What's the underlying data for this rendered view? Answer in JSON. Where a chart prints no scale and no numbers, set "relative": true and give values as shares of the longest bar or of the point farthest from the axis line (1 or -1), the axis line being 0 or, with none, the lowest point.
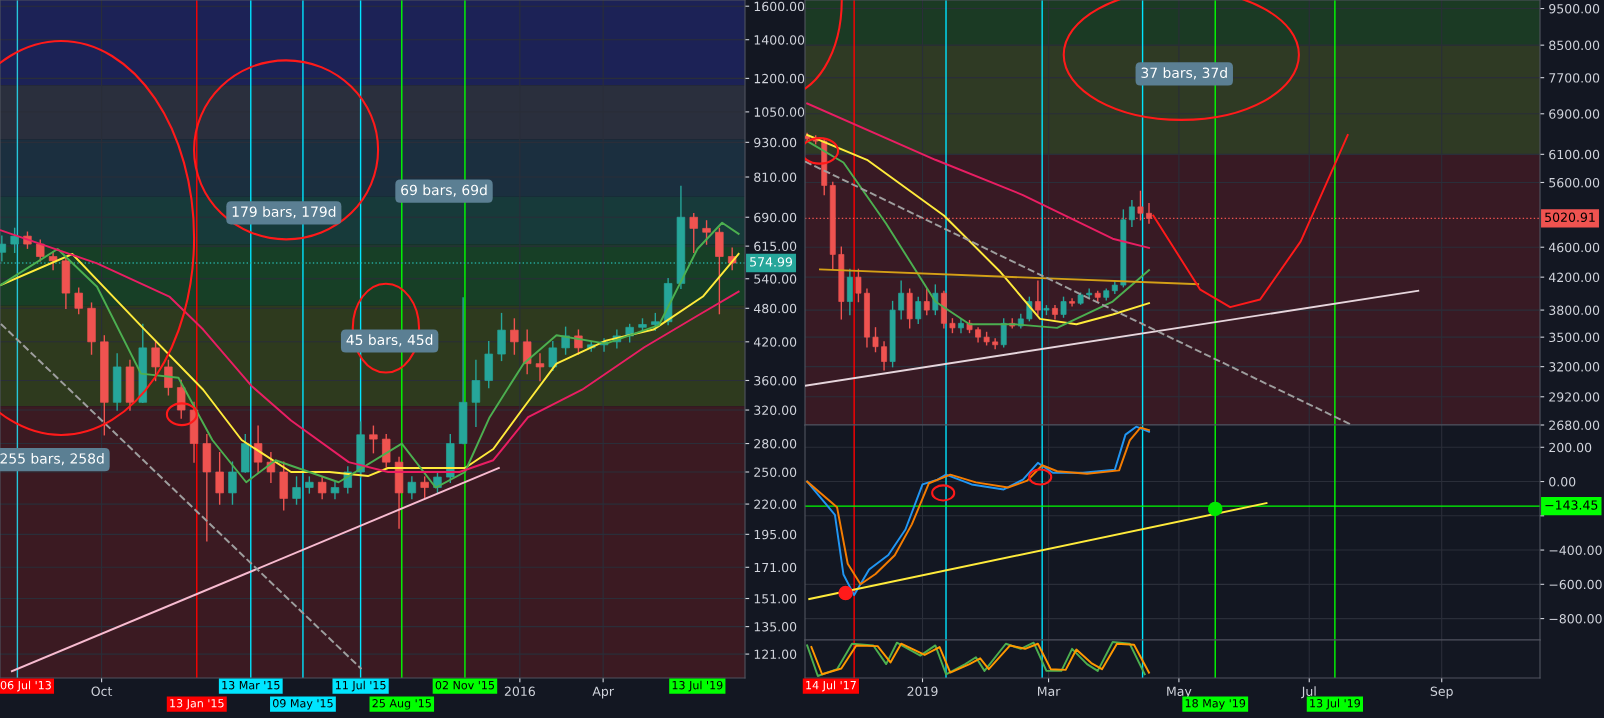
{
  "chart_data": [
    {
      "type": "candlestick",
      "log": true,
      "grid": true,
      "xlim": [
        "2014-06-12",
        "2016-09-03"
      ],
      "ylim": [
        110,
        1640
      ],
      "xticks": [
        {
          "value": "2014-10-01",
          "label": "Oct"
        },
        {
          "value": "2016-01-01",
          "label": "2016"
        },
        {
          "value": "2016-04-01",
          "label": "Apr"
        }
      ],
      "yticks": [
        {
          "value": 121,
          "label": "121.00"
        },
        {
          "value": 135,
          "label": "135.00"
        },
        {
          "value": 151,
          "label": "151.00"
        },
        {
          "value": 171,
          "label": "171.00"
        },
        {
          "value": 195,
          "label": "195.00"
        },
        {
          "value": 220,
          "label": "220.00"
        },
        {
          "value": 250,
          "label": "250.00"
        },
        {
          "value": 280,
          "label": "280.00"
        },
        {
          "value": 320,
          "label": "320.00"
        },
        {
          "value": 360,
          "label": "360.00"
        },
        {
          "value": 420,
          "label": "420.00"
        },
        {
          "value": 480,
          "label": "480.00"
        },
        {
          "value": 540,
          "label": "540.00"
        },
        {
          "value": 615,
          "label": "615.00"
        },
        {
          "value": 690,
          "label": "690.00"
        },
        {
          "value": 810,
          "label": "810.00"
        },
        {
          "value": 930,
          "label": "930.00"
        },
        {
          "value": 1050,
          "label": "1050.00"
        },
        {
          "value": 1200,
          "label": "1200.00"
        },
        {
          "value": 1400,
          "label": "1400.00"
        },
        {
          "value": 1600,
          "label": "1600.00"
        }
      ],
      "x": [
        "2014-06-14",
        "2014-06-28",
        "2014-07-12",
        "2014-07-26",
        "2014-08-09",
        "2014-08-23",
        "2014-09-06",
        "2014-09-20",
        "2014-10-04",
        "2014-10-18",
        "2014-11-01",
        "2014-11-15",
        "2014-11-29",
        "2014-12-13",
        "2014-12-27",
        "2015-01-10",
        "2015-01-24",
        "2015-02-07",
        "2015-02-21",
        "2015-03-07",
        "2015-03-21",
        "2015-04-04",
        "2015-04-18",
        "2015-05-02",
        "2015-05-16",
        "2015-05-30",
        "2015-06-13",
        "2015-06-27",
        "2015-07-11",
        "2015-07-25",
        "2015-08-08",
        "2015-08-22",
        "2015-09-05",
        "2015-09-19",
        "2015-10-03",
        "2015-10-17",
        "2015-10-31",
        "2015-11-14",
        "2015-11-28",
        "2015-12-12",
        "2015-12-26",
        "2016-01-09",
        "2016-01-23",
        "2016-02-06",
        "2016-02-20",
        "2016-03-05",
        "2016-03-19",
        "2016-04-02",
        "2016-04-16",
        "2016-04-30",
        "2016-05-14",
        "2016-05-28",
        "2016-06-11",
        "2016-06-25",
        "2016-07-09",
        "2016-07-23",
        "2016-08-06",
        "2016-08-20"
      ],
      "ohlc": [
        [
          600,
          640,
          580,
          620
        ],
        [
          620,
          660,
          600,
          640
        ],
        [
          640,
          650,
          610,
          620
        ],
        [
          620,
          630,
          580,
          590
        ],
        [
          590,
          600,
          560,
          580
        ],
        [
          580,
          590,
          480,
          510
        ],
        [
          510,
          520,
          470,
          480
        ],
        [
          480,
          490,
          400,
          420
        ],
        [
          420,
          430,
          290,
          330
        ],
        [
          330,
          400,
          320,
          380
        ],
        [
          380,
          390,
          320,
          330
        ],
        [
          330,
          450,
          330,
          410
        ],
        [
          410,
          420,
          360,
          380
        ],
        [
          380,
          390,
          340,
          350
        ],
        [
          350,
          360,
          310,
          320
        ],
        [
          320,
          330,
          260,
          280
        ],
        [
          280,
          290,
          190,
          250
        ],
        [
          250,
          270,
          220,
          230
        ],
        [
          230,
          260,
          220,
          250
        ],
        [
          250,
          290,
          250,
          280
        ],
        [
          280,
          300,
          250,
          260
        ],
        [
          260,
          270,
          240,
          250
        ],
        [
          250,
          260,
          215,
          225
        ],
        [
          225,
          245,
          220,
          235
        ],
        [
          235,
          245,
          230,
          240
        ],
        [
          240,
          245,
          225,
          230
        ],
        [
          230,
          240,
          225,
          235
        ],
        [
          235,
          255,
          230,
          250
        ],
        [
          250,
          305,
          245,
          290
        ],
        [
          290,
          300,
          270,
          285
        ],
        [
          285,
          290,
          255,
          260
        ],
        [
          260,
          265,
          200,
          230
        ],
        [
          230,
          245,
          225,
          240
        ],
        [
          240,
          245,
          225,
          235
        ],
        [
          235,
          250,
          230,
          245
        ],
        [
          245,
          290,
          240,
          280
        ],
        [
          280,
          500,
          280,
          330
        ],
        [
          330,
          390,
          300,
          360
        ],
        [
          360,
          420,
          350,
          400
        ],
        [
          400,
          470,
          390,
          440
        ],
        [
          440,
          460,
          400,
          420
        ],
        [
          420,
          440,
          370,
          385
        ],
        [
          385,
          400,
          360,
          380
        ],
        [
          380,
          420,
          375,
          410
        ],
        [
          410,
          445,
          400,
          430
        ],
        [
          430,
          440,
          400,
          410
        ],
        [
          410,
          420,
          405,
          415
        ],
        [
          415,
          425,
          405,
          420
        ],
        [
          420,
          440,
          410,
          430
        ],
        [
          430,
          450,
          420,
          445
        ],
        [
          445,
          460,
          440,
          450
        ],
        [
          450,
          470,
          440,
          455
        ],
        [
          455,
          540,
          450,
          530
        ],
        [
          530,
          780,
          520,
          690
        ],
        [
          690,
          700,
          600,
          660
        ],
        [
          660,
          680,
          620,
          650
        ],
        [
          650,
          660,
          470,
          590
        ],
        [
          590,
          610,
          560,
          574.99
        ]
      ],
      "colors": [
        "#26a69a",
        "#26a69a",
        "#ef5350",
        "#ef5350",
        "#ef5350",
        "#ef5350",
        "#ef5350",
        "#ef5350",
        "#ef5350",
        "#26a69a",
        "#ef5350",
        "#26a69a",
        "#ef5350",
        "#ef5350",
        "#ef5350",
        "#ef5350",
        "#ef5350",
        "#ef5350",
        "#26a69a",
        "#26a69a",
        "#ef5350",
        "#ef5350",
        "#ef5350",
        "#26a69a",
        "#26a69a",
        "#ef5350",
        "#26a69a",
        "#26a69a",
        "#26a69a",
        "#ef5350",
        "#ef5350",
        "#ef5350",
        "#26a69a",
        "#ef5350",
        "#26a69a",
        "#26a69a",
        "#26a69a",
        "#26a69a",
        "#26a69a",
        "#26a69a",
        "#ef5350",
        "#ef5350",
        "#ef5350",
        "#26a69a",
        "#26a69a",
        "#ef5350",
        "#26a69a",
        "#26a69a",
        "#26a69a",
        "#26a69a",
        "#26a69a",
        "#26a69a",
        "#26a69a",
        "#26a69a",
        "#ef5350",
        "#ef5350",
        "#ef5350",
        "#ef5350"
      ],
      "series": [
        {
          "type": "line",
          "color": "#ffeb3b",
          "x": [
            "2014-06-13",
            "2014-08-30",
            "2014-11-17",
            "2015-01-20",
            "2015-03-03",
            "2015-04-26",
            "2015-06-07",
            "2015-07-19",
            "2015-08-10",
            "2015-11-02",
            "2015-12-03",
            "2016-01-05",
            "2016-02-10",
            "2016-04-04",
            "2016-05-26",
            "2016-07-19",
            "2016-08-27"
          ],
          "values": [
            527,
            596,
            441,
            347,
            284,
            250,
            250,
            246,
            254,
            254,
            274,
            323,
            385,
            422,
            441,
            503,
            596
          ]
        },
        {
          "type": "line",
          "color": "#4caf50",
          "x": [
            "2014-06-13",
            "2014-08-14",
            "2014-09-26",
            "2014-11-13",
            "2014-12-24",
            "2015-01-30",
            "2015-03-08",
            "2015-04-09",
            "2015-06-17",
            "2015-08-25",
            "2015-10-01",
            "2015-11-02",
            "2015-11-29",
            "2016-01-05",
            "2016-02-10",
            "2016-04-04",
            "2016-06-01",
            "2016-07-13",
            "2016-08-09",
            "2016-08-27"
          ],
          "values": [
            527,
            608,
            523,
            370,
            364,
            284,
            240,
            262,
            240,
            280,
            235,
            250,
            311,
            385,
            431,
            417,
            449,
            608,
            675,
            646
          ]
        },
        {
          "type": "line",
          "color": "#e91e63",
          "x": [
            "2014-06-13",
            "2014-09-26",
            "2014-12-14",
            "2015-01-20",
            "2015-03-14",
            "2015-04-26",
            "2015-06-28",
            "2015-08-10",
            "2015-10-27",
            "2015-12-03",
            "2016-01-10",
            "2016-03-09",
            "2016-05-16",
            "2016-07-13",
            "2016-08-27"
          ],
          "values": [
            655,
            574,
            503,
            441,
            352,
            307,
            260,
            250,
            250,
            262,
            311,
            347,
            411,
            466,
            513
          ]
        },
        {
          "type": "line",
          "color": "#f8bbd0",
          "x": [
            "2014-06-25",
            "2015-12-09"
          ],
          "values": [
            113,
            254
          ]
        },
        {
          "type": "line",
          "color": "#9e9e9e",
          "line_style": "dashed",
          "x": [
            "2014-06-13",
            "2015-07-12"
          ],
          "values": [
            451,
            114
          ]
        }
      ],
      "bands": [
        {
          "axis": "y",
          "from": 1168,
          "to": 1640,
          "color": "#1c2256"
        },
        {
          "axis": "y",
          "from": 941,
          "to": 1168,
          "color": "#2a2f3d"
        },
        {
          "axis": "y",
          "from": 749,
          "to": 941,
          "color": "#1b2f3f"
        },
        {
          "axis": "y",
          "from": 619,
          "to": 749,
          "color": "#173a3a"
        },
        {
          "axis": "y",
          "from": 485,
          "to": 619,
          "color": "#173f26"
        },
        {
          "axis": "y",
          "from": 325,
          "to": 485,
          "color": "#2e3a1e"
        },
        {
          "axis": "y",
          "from": 110,
          "to": 325,
          "color": "#3b1a22"
        }
      ],
      "ref_lines": [
        {
          "axis": "x",
          "value": "2014-07-01",
          "color": "#26c6da"
        },
        {
          "axis": "x",
          "value": "2015-01-13",
          "label": "13 Jan '15",
          "color": "#ff0000"
        },
        {
          "axis": "x",
          "value": "2015-03-13",
          "label": "13 Mar '15",
          "color": "#00e5ff"
        },
        {
          "axis": "x",
          "value": "2015-05-09",
          "label": "09 May '15",
          "color": "#00e5ff"
        },
        {
          "axis": "x",
          "value": "2015-07-11",
          "label": "11 Jul '15",
          "color": "#00e5ff"
        },
        {
          "axis": "x",
          "value": "2015-08-25",
          "label": "25 Aug '15",
          "color": "#00ff00"
        },
        {
          "axis": "x",
          "value": "2015-11-02",
          "label": "02 Nov '15",
          "color": "#00ff00"
        },
        {
          "axis": "y",
          "value": 574.99,
          "label": "574.99",
          "color": "#26a69a",
          "line_style": "dotted"
        }
      ],
      "annotations": [
        "255 bars, 258d",
        "179 bars, 179d",
        "69 bars, 69d",
        "45 bars, 45d",
        "06 Jul '13",
        "13 Jul '19"
      ]
    },
    {
      "type": "candlestick",
      "log": true,
      "grid": true,
      "tick_labels": "y",
      "xlim": [
        "2018-11-07",
        "2019-10-17"
      ],
      "ylim": [
        2680,
        9750
      ],
      "xticks": [
        {
          "value": "2019-01-01",
          "label": null
        },
        {
          "value": "2019-03-01",
          "label": null
        },
        {
          "value": "2019-05-01",
          "label": null
        },
        {
          "value": "2019-07-01",
          "label": null
        },
        {
          "value": "2019-09-01",
          "label": null
        }
      ],
      "yticks": [
        {
          "value": 2680,
          "label": "2680.00"
        },
        {
          "value": 2920,
          "label": "2920.00"
        },
        {
          "value": 3200,
          "label": "3200.00"
        },
        {
          "value": 3500,
          "label": "3500.00"
        },
        {
          "value": 3800,
          "label": "3800.00"
        },
        {
          "value": 4200,
          "label": "4200.00"
        },
        {
          "value": 4600,
          "label": "4600.00"
        },
        {
          "value": 5600,
          "label": "5600.00"
        },
        {
          "value": 6100,
          "label": "6100.00"
        },
        {
          "value": 6900,
          "label": "6900.00"
        },
        {
          "value": 7700,
          "label": "7700.00"
        },
        {
          "value": 8500,
          "label": "8500.00"
        },
        {
          "value": 9500,
          "label": "9500.00"
        }
      ],
      "x": [
        "2018-11-08",
        "2018-11-12",
        "2018-11-16",
        "2018-11-20",
        "2018-11-24",
        "2018-11-28",
        "2018-12-02",
        "2018-12-06",
        "2018-12-10",
        "2018-12-14",
        "2018-12-18",
        "2018-12-22",
        "2018-12-26",
        "2018-12-30",
        "2019-01-03",
        "2019-01-07",
        "2019-01-11",
        "2019-01-15",
        "2019-01-19",
        "2019-01-23",
        "2019-01-27",
        "2019-01-31",
        "2019-02-04",
        "2019-02-08",
        "2019-02-12",
        "2019-02-16",
        "2019-02-20",
        "2019-02-24",
        "2019-02-28",
        "2019-03-04",
        "2019-03-08",
        "2019-03-12",
        "2019-03-16",
        "2019-03-20",
        "2019-03-24",
        "2019-03-28",
        "2019-04-01",
        "2019-04-05",
        "2019-04-09",
        "2019-04-13",
        "2019-04-17"
      ],
      "ohlc": [
        [
          6450,
          6500,
          6350,
          6400
        ],
        [
          6400,
          6450,
          6300,
          6350
        ],
        [
          6350,
          6380,
          5400,
          5550
        ],
        [
          5550,
          5600,
          4300,
          4500
        ],
        [
          4500,
          4600,
          3700,
          3900
        ],
        [
          3900,
          4300,
          3750,
          4200
        ],
        [
          4200,
          4300,
          3900,
          4000
        ],
        [
          4000,
          4050,
          3400,
          3500
        ],
        [
          3500,
          3600,
          3350,
          3400
        ],
        [
          3400,
          3450,
          3170,
          3250
        ],
        [
          3250,
          3900,
          3200,
          3800
        ],
        [
          3800,
          4150,
          3700,
          4000
        ],
        [
          4000,
          4050,
          3600,
          3700
        ],
        [
          3700,
          3950,
          3650,
          3900
        ],
        [
          3900,
          4050,
          3750,
          3800
        ],
        [
          3800,
          4100,
          3750,
          4000
        ],
        [
          4000,
          4020,
          3600,
          3650
        ],
        [
          3650,
          3700,
          3550,
          3600
        ],
        [
          3600,
          3700,
          3550,
          3650
        ],
        [
          3650,
          3680,
          3550,
          3580
        ],
        [
          3580,
          3600,
          3450,
          3500
        ],
        [
          3500,
          3550,
          3420,
          3450
        ],
        [
          3450,
          3480,
          3380,
          3420
        ],
        [
          3420,
          3700,
          3400,
          3650
        ],
        [
          3650,
          3700,
          3600,
          3620
        ],
        [
          3620,
          3750,
          3600,
          3700
        ],
        [
          3700,
          3950,
          3680,
          3900
        ],
        [
          3900,
          4150,
          3750,
          3800
        ],
        [
          3800,
          3850,
          3750,
          3820
        ],
        [
          3820,
          3850,
          3700,
          3750
        ],
        [
          3750,
          3950,
          3720,
          3900
        ],
        [
          3900,
          3930,
          3850,
          3880
        ],
        [
          3880,
          4000,
          3870,
          3980
        ],
        [
          3980,
          4050,
          3950,
          4000
        ],
        [
          4000,
          4020,
          3900,
          3950
        ],
        [
          3950,
          4050,
          3920,
          4030
        ],
        [
          4030,
          4150,
          4000,
          4100
        ],
        [
          4100,
          5150,
          4080,
          5000
        ],
        [
          5000,
          5300,
          4900,
          5200
        ],
        [
          5200,
          5450,
          5000,
          5100
        ],
        [
          5100,
          5250,
          4950,
          5020.91
        ]
      ],
      "colors": [
        "#ef5350",
        "#ef5350",
        "#ef5350",
        "#ef5350",
        "#ef5350",
        "#26a69a",
        "#ef5350",
        "#ef5350",
        "#ef5350",
        "#ef5350",
        "#26a69a",
        "#26a69a",
        "#ef5350",
        "#26a69a",
        "#ef5350",
        "#26a69a",
        "#ef5350",
        "#ef5350",
        "#26a69a",
        "#ef5350",
        "#ef5350",
        "#ef5350",
        "#ef5350",
        "#26a69a",
        "#ef5350",
        "#26a69a",
        "#26a69a",
        "#ef5350",
        "#26a69a",
        "#ef5350",
        "#26a69a",
        "#ef5350",
        "#26a69a",
        "#26a69a",
        "#ef5350",
        "#26a69a",
        "#26a69a",
        "#26a69a",
        "#26a69a",
        "#ef5350",
        "#ef5350"
      ],
      "series": [
        {
          "type": "line",
          "color": "#e91e63",
          "x": [
            "2018-11-08",
            "2019-01-07",
            "2019-02-17",
            "2019-03-31",
            "2019-04-17"
          ],
          "values": [
            7120,
            6000,
            5390,
            4720,
            4590
          ]
        },
        {
          "type": "line",
          "color": "#ffeb3b",
          "x": [
            "2018-11-08",
            "2018-12-06",
            "2019-01-11",
            "2019-02-06",
            "2019-02-25",
            "2019-03-14",
            "2019-03-31",
            "2019-04-17"
          ],
          "values": [
            6470,
            6000,
            5065,
            4280,
            3700,
            3640,
            3750,
            3880
          ]
        },
        {
          "type": "line",
          "color": "#4caf50",
          "x": [
            "2018-11-08",
            "2018-11-25",
            "2018-12-15",
            "2019-01-07",
            "2019-01-23",
            "2019-02-13",
            "2019-03-05",
            "2019-03-31",
            "2019-04-17"
          ],
          "values": [
            6350,
            5950,
            4940,
            3900,
            3640,
            3640,
            3600,
            3900,
            4290
          ]
        },
        {
          "type": "line",
          "color": "#e6d5dc",
          "x": [
            "2018-11-07",
            "2019-08-21"
          ],
          "values": [
            3020,
            4030
          ]
        },
        {
          "type": "line",
          "color": "#d4a017",
          "x": [
            "2018-11-14",
            "2019-05-10"
          ],
          "values": [
            4300,
            4110
          ]
        },
        {
          "type": "line",
          "color": "#9e9e9e",
          "line_style": "dashed",
          "x": [
            "2018-11-07",
            "2019-07-21"
          ],
          "values": [
            5970,
            2680
          ]
        },
        {
          "type": "line",
          "color": "#ff1a1a",
          "x": [
            "2019-04-19",
            "2019-05-11",
            "2019-05-25",
            "2019-06-08",
            "2019-06-27",
            "2019-07-11",
            "2019-07-19"
          ],
          "values": [
            5065,
            4043,
            3834,
            3924,
            4682,
            5750,
            6468
          ]
        }
      ],
      "bands": [
        {
          "axis": "y",
          "from": 8500,
          "to": 9750,
          "color": "#1b3a24"
        },
        {
          "axis": "y",
          "from": 6100,
          "to": 8500,
          "color": "#2f3a24"
        },
        {
          "axis": "y",
          "from": 2680,
          "to": 6100,
          "color": "#381a24"
        }
      ],
      "ref_lines": [
        {
          "axis": "x",
          "value": "2018-11-30",
          "color": "#ff0000"
        },
        {
          "axis": "x",
          "value": "2019-01-12",
          "color": "#00e5ff"
        },
        {
          "axis": "x",
          "value": "2019-02-26",
          "color": "#00e5ff"
        },
        {
          "axis": "x",
          "value": "2019-04-14",
          "color": "#00e5ff"
        },
        {
          "axis": "x",
          "value": "2019-05-18",
          "color": "#00ff00"
        },
        {
          "axis": "x",
          "value": "2019-07-13",
          "color": "#00ff00"
        },
        {
          "axis": "y",
          "value": 5020.91,
          "label": "5020.91",
          "color": "#ef5350",
          "line_style": "dotted"
        }
      ],
      "annotations": [
        "37 bars, 37d"
      ]
    },
    {
      "type": "line",
      "grid": true,
      "tick_labels": "y",
      "xlim": [
        "2018-11-07",
        "2019-10-17"
      ],
      "ylim": [
        -925,
        330
      ],
      "xticks": [
        {
          "value": "2019-01-01",
          "label": null
        },
        {
          "value": "2019-03-01",
          "label": null
        },
        {
          "value": "2019-05-01",
          "label": null
        },
        {
          "value": "2019-07-01",
          "label": null
        },
        {
          "value": "2019-09-01",
          "label": null
        }
      ],
      "yticks": [
        {
          "value": -800,
          "label": "−800.00"
        },
        {
          "value": -600,
          "label": "−600.00"
        },
        {
          "value": -400,
          "label": "−400.00"
        },
        {
          "value": -200,
          "label": null
        },
        {
          "value": 0,
          "label": "0.00"
        },
        {
          "value": 200,
          "label": "200.00"
        }
      ],
      "series": [
        {
          "type": "line",
          "color": "#2196f3",
          "x": [
            "2018-11-08",
            "2018-11-21",
            "2018-11-25",
            "2018-11-30",
            "2018-12-07",
            "2018-12-16",
            "2018-12-24",
            "2019-01-01",
            "2019-01-08",
            "2019-01-12",
            "2019-01-24",
            "2019-02-08",
            "2019-02-17",
            "2019-02-24",
            "2019-03-03",
            "2019-03-17",
            "2019-04-01",
            "2019-04-06",
            "2019-04-11",
            "2019-04-17"
          ],
          "values": [
            0,
            -194,
            -543,
            -663,
            -514,
            -429,
            -280,
            -17,
            11,
            40,
            -17,
            -46,
            11,
            109,
            51,
            51,
            69,
            274,
            320,
            290
          ]
        },
        {
          "type": "line",
          "color": "#f57c00",
          "x": [
            "2018-11-08",
            "2018-11-22",
            "2018-11-27",
            "2018-12-03",
            "2018-12-10",
            "2018-12-19",
            "2018-12-27",
            "2019-01-04",
            "2019-01-10",
            "2019-01-14",
            "2019-01-26",
            "2019-02-10",
            "2019-02-19",
            "2019-02-26",
            "2019-03-05",
            "2019-03-19",
            "2019-04-03",
            "2019-04-08",
            "2019-04-13",
            "2019-04-17"
          ],
          "values": [
            0,
            -150,
            -480,
            -600,
            -540,
            -430,
            -250,
            -10,
            20,
            40,
            -5,
            -35,
            5,
            95,
            60,
            45,
            65,
            240,
            315,
            300
          ]
        },
        {
          "type": "line",
          "color": "#ffeb3b",
          "x": [
            "2018-11-09",
            "2019-06-11"
          ],
          "values": [
            -686,
            -126
          ]
        },
        {
          "type": "scatter",
          "marker": "circle",
          "color": "#ff1a1a",
          "x": [
            "2018-11-26"
          ],
          "values": [
            -651
          ]
        },
        {
          "type": "scatter",
          "marker": "circle",
          "color": "#00e600",
          "x": [
            "2019-05-18"
          ],
          "values": [
            -160
          ]
        }
      ],
      "ref_lines": [
        {
          "axis": "x",
          "value": "2018-11-30",
          "color": "#ff0000"
        },
        {
          "axis": "x",
          "value": "2019-01-12",
          "color": "#00e5ff"
        },
        {
          "axis": "x",
          "value": "2019-02-26",
          "color": "#00e5ff"
        },
        {
          "axis": "x",
          "value": "2019-04-14",
          "color": "#00e5ff"
        },
        {
          "axis": "x",
          "value": "2019-05-18",
          "color": "#00ff00"
        },
        {
          "axis": "x",
          "value": "2019-07-13",
          "color": "#00ff00"
        },
        {
          "axis": "y",
          "value": -143.45,
          "label": "−143.45",
          "color": "#00ff00",
          "line_style": "solid"
        }
      ]
    },
    {
      "type": "line",
      "relative": true,
      "grid": "x",
      "tick_labels": "x",
      "xlim": [
        "2018-11-07",
        "2019-10-17"
      ],
      "xticks": [
        {
          "value": "2019-01-01",
          "label": "2019"
        },
        {
          "value": "2019-03-01",
          "label": "Mar"
        },
        {
          "value": "2019-05-01",
          "label": "May"
        },
        {
          "value": "2019-07-01",
          "label": "Jul"
        },
        {
          "value": "2019-09-01",
          "label": "Sep"
        }
      ],
      "series": [
        {
          "type": "line",
          "color": "#4caf50",
          "x": [
            "2018-11-08",
            "2018-11-13",
            "2018-11-22",
            "2018-11-29",
            "2018-12-09",
            "2018-12-15",
            "2018-12-20",
            "2018-12-31",
            "2019-01-07",
            "2019-01-12",
            "2019-01-21",
            "2019-01-26",
            "2019-01-30",
            "2019-02-09",
            "2019-02-16",
            "2019-02-22",
            "2019-02-28",
            "2019-03-07",
            "2019-03-12",
            "2019-03-19",
            "2019-03-24",
            "2019-03-31",
            "2019-04-08",
            "2019-04-15"
          ],
          "values": [
            0.9,
            0,
            0.2,
            0.95,
            0.9,
            0.35,
            0.98,
            0.6,
            0.9,
            0.05,
            0.35,
            0.55,
            0.15,
            0.95,
            0.8,
            0.98,
            0.15,
            0.15,
            0.8,
            0.35,
            0.15,
            1,
            0.95,
            0.05
          ]
        },
        {
          "type": "line",
          "color": "#ff9800",
          "x": [
            "2018-11-10",
            "2018-11-15",
            "2018-11-24",
            "2018-12-01",
            "2018-12-11",
            "2018-12-17",
            "2018-12-22",
            "2019-01-02",
            "2019-01-09",
            "2019-01-14",
            "2019-01-23",
            "2019-01-28",
            "2019-02-01",
            "2019-02-11",
            "2019-02-18",
            "2019-02-24",
            "2019-03-02",
            "2019-03-09",
            "2019-03-14",
            "2019-03-21",
            "2019-03-26",
            "2019-04-02",
            "2019-04-10",
            "2019-04-17"
          ],
          "values": [
            0.85,
            0.05,
            0.22,
            0.9,
            0.88,
            0.4,
            0.95,
            0.62,
            0.85,
            0.1,
            0.35,
            0.52,
            0.2,
            0.9,
            0.8,
            0.95,
            0.2,
            0.18,
            0.78,
            0.38,
            0.2,
            0.95,
            0.92,
            0.1
          ]
        }
      ],
      "ref_lines": [
        {
          "axis": "x",
          "value": "2018-11-30",
          "color": "#ff0000"
        },
        {
          "axis": "x",
          "value": "2019-01-12",
          "color": "#00e5ff"
        },
        {
          "axis": "x",
          "value": "2019-02-26",
          "color": "#00e5ff"
        },
        {
          "axis": "x",
          "value": "2019-04-14",
          "color": "#00e5ff"
        },
        {
          "axis": "x",
          "value": "2019-05-18",
          "label": "18 May '19",
          "color": "#00ff00"
        },
        {
          "axis": "x",
          "value": "2019-07-13",
          "label": "13 Jul '19",
          "color": "#00ff00"
        }
      ],
      "annotations": [
        "14 Jul '17"
      ]
    }
  ]
}
